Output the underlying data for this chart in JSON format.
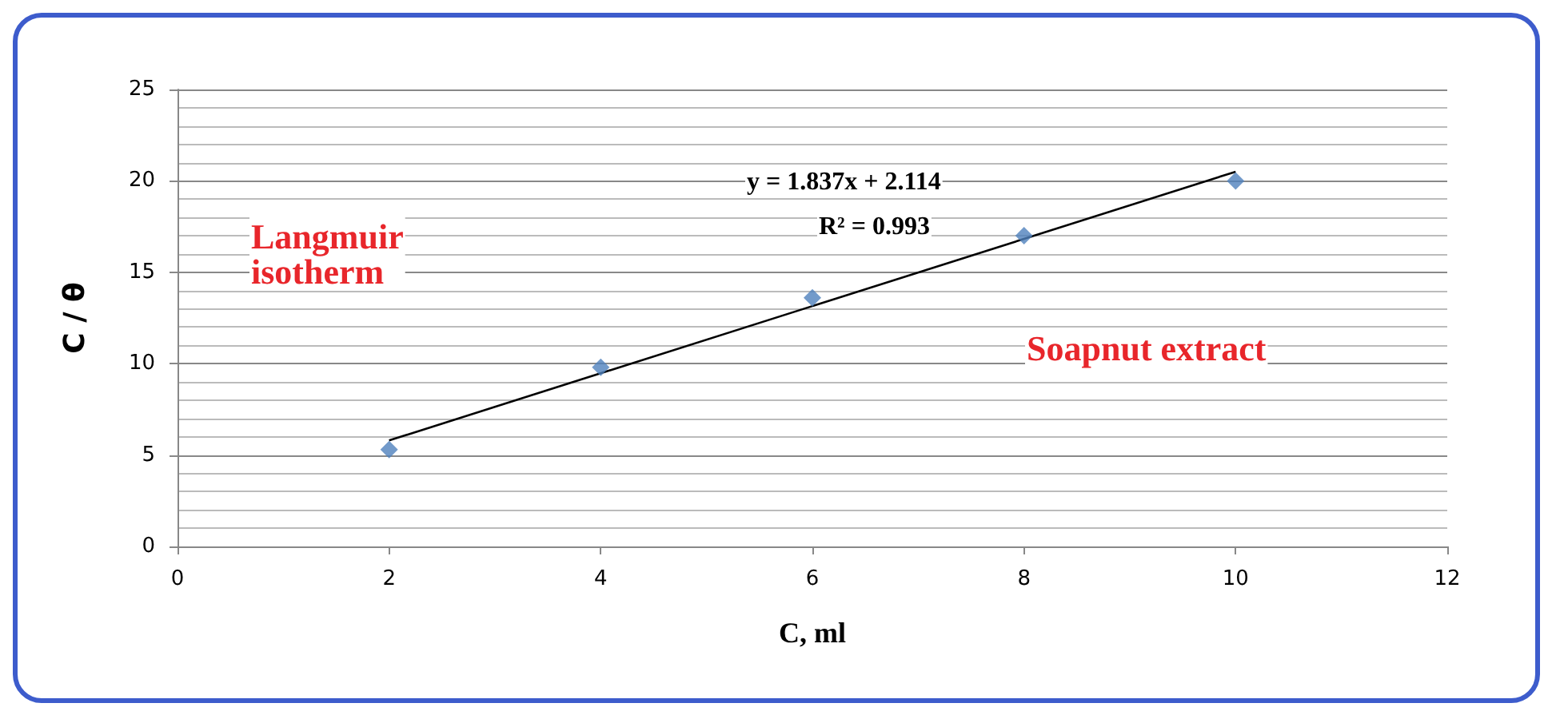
{
  "chart_data": {
    "type": "scatter",
    "xlabel": "C, ml",
    "ylabel": "C / θ",
    "x": [
      2,
      4,
      6,
      8,
      10
    ],
    "series": [
      {
        "type": "scatter",
        "color": "#4f81bd",
        "marker": "diamond",
        "values": [
          5.3,
          9.8,
          13.6,
          17,
          20
        ]
      },
      {
        "type": "line",
        "color": "#000000",
        "marker": "none",
        "x": [
          2,
          10
        ],
        "values": [
          5.8,
          20.5
        ]
      }
    ],
    "xlim": [
      0,
      12
    ],
    "xticks": [
      0,
      2,
      4,
      6,
      8,
      10,
      12
    ],
    "ylim": [
      0,
      25
    ],
    "yticks": [
      0,
      5,
      10,
      15,
      20,
      25
    ],
    "grid": "y",
    "annotations": [
      "y = 1.837x + 2.114",
      "R² = 0.993",
      "Langmuir\nisotherm",
      "Soapnut extract"
    ]
  }
}
